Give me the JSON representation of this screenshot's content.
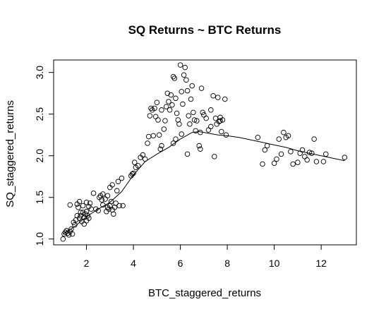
{
  "chart_data": {
    "type": "scatter",
    "title": "SQ Returns ~ BTC Returns",
    "xlabel": "BTC_staggered_returns",
    "ylabel": "SQ_staggered_returns",
    "xlim": [
      0.6,
      13.5
    ],
    "ylim": [
      0.93,
      3.15
    ],
    "xticks": [
      2,
      4,
      6,
      8,
      10,
      12
    ],
    "xtick_labels": [
      "2",
      "4",
      "6",
      "8",
      "10",
      "12"
    ],
    "yticks": [
      1.0,
      1.5,
      2.0,
      2.5,
      3.0
    ],
    "ytick_labels": [
      "1.0",
      "1.5",
      "2.0",
      "2.5",
      "3.0"
    ],
    "grid": false,
    "legend": "none",
    "series": [
      {
        "marker": "open-circle",
        "points": [
          [
            1.0,
            1.0
          ],
          [
            1.05,
            1.06
          ],
          [
            1.1,
            1.08
          ],
          [
            1.15,
            1.1
          ],
          [
            1.2,
            1.07
          ],
          [
            1.3,
            1.09
          ],
          [
            1.25,
            1.05
          ],
          [
            1.35,
            1.12
          ],
          [
            1.4,
            1.06
          ],
          [
            1.3,
            1.41
          ],
          [
            1.45,
            1.2
          ],
          [
            1.5,
            1.17
          ],
          [
            1.55,
            1.23
          ],
          [
            1.6,
            1.28
          ],
          [
            1.6,
            1.42
          ],
          [
            1.65,
            1.38
          ],
          [
            1.7,
            1.45
          ],
          [
            1.75,
            1.32
          ],
          [
            1.8,
            1.21
          ],
          [
            1.85,
            1.4
          ],
          [
            1.9,
            1.26
          ],
          [
            1.95,
            1.3
          ],
          [
            2.0,
            1.33
          ],
          [
            2.0,
            1.44
          ],
          [
            2.05,
            1.28
          ],
          [
            2.1,
            1.25
          ],
          [
            2.1,
            1.39
          ],
          [
            2.15,
            1.43
          ],
          [
            2.2,
            1.36
          ],
          [
            1.7,
            1.25
          ],
          [
            1.9,
            1.18
          ],
          [
            1.75,
            1.28
          ],
          [
            1.85,
            1.32
          ],
          [
            2.0,
            1.22
          ],
          [
            2.3,
            1.55
          ],
          [
            2.4,
            1.36
          ],
          [
            2.5,
            1.34
          ],
          [
            2.55,
            1.5
          ],
          [
            2.6,
            1.52
          ],
          [
            2.65,
            1.47
          ],
          [
            2.7,
            1.54
          ],
          [
            2.7,
            1.41
          ],
          [
            2.8,
            1.48
          ],
          [
            2.85,
            1.33
          ],
          [
            2.9,
            1.38
          ],
          [
            2.9,
            1.52
          ],
          [
            2.95,
            1.36
          ],
          [
            3.0,
            1.62
          ],
          [
            3.0,
            1.4
          ],
          [
            3.05,
            1.45
          ],
          [
            3.1,
            1.35
          ],
          [
            3.1,
            1.65
          ],
          [
            3.15,
            1.3
          ],
          [
            3.2,
            1.38
          ],
          [
            3.25,
            1.43
          ],
          [
            3.3,
            1.58
          ],
          [
            3.35,
            1.69
          ],
          [
            3.4,
            1.4
          ],
          [
            3.5,
            1.73
          ],
          [
            3.55,
            1.4
          ],
          [
            3.9,
            1.76
          ],
          [
            3.95,
            1.78
          ],
          [
            4.0,
            1.79
          ],
          [
            4.05,
            1.92
          ],
          [
            4.1,
            1.86
          ],
          [
            4.2,
            1.88
          ],
          [
            4.3,
            1.98
          ],
          [
            4.4,
            2.01
          ],
          [
            4.5,
            1.96
          ],
          [
            4.6,
            2.15
          ],
          [
            4.65,
            2.23
          ],
          [
            4.7,
            2.48
          ],
          [
            4.75,
            2.57
          ],
          [
            4.8,
            2.55
          ],
          [
            4.85,
            2.24
          ],
          [
            4.9,
            2.57
          ],
          [
            4.95,
            2.47
          ],
          [
            5.0,
            2.64
          ],
          [
            5.05,
            2.43
          ],
          [
            5.1,
            2.25
          ],
          [
            5.15,
            2.08
          ],
          [
            5.2,
            2.55
          ],
          [
            5.3,
            2.32
          ],
          [
            5.35,
            2.42
          ],
          [
            5.4,
            2.59
          ],
          [
            5.45,
            2.75
          ],
          [
            5.5,
            2.65
          ],
          [
            5.55,
            2.55
          ],
          [
            5.6,
            2.73
          ],
          [
            5.65,
            2.61
          ],
          [
            5.7,
            2.95
          ],
          [
            5.75,
            2.93
          ],
          [
            5.8,
            2.69
          ],
          [
            5.85,
            2.51
          ],
          [
            5.9,
            2.43
          ],
          [
            5.95,
            2.38
          ],
          [
            6.0,
            3.09
          ],
          [
            6.05,
            2.77
          ],
          [
            6.1,
            2.62
          ],
          [
            6.15,
            2.97
          ],
          [
            6.2,
            3.06
          ],
          [
            6.25,
            2.91
          ],
          [
            6.3,
            2.78
          ],
          [
            6.35,
            2.48
          ],
          [
            6.4,
            2.38
          ],
          [
            6.45,
            2.68
          ],
          [
            6.5,
            2.84
          ],
          [
            6.55,
            2.52
          ],
          [
            6.6,
            2.43
          ],
          [
            6.65,
            2.3
          ],
          [
            6.7,
            2.42
          ],
          [
            6.8,
            2.12
          ],
          [
            6.85,
            2.08
          ],
          [
            6.9,
            2.81
          ],
          [
            6.95,
            2.52
          ],
          [
            7.0,
            2.49
          ],
          [
            7.1,
            2.45
          ],
          [
            7.2,
            2.31
          ],
          [
            7.3,
            2.35
          ],
          [
            7.4,
            2.72
          ],
          [
            7.5,
            2.45
          ],
          [
            7.55,
            2.38
          ],
          [
            7.6,
            2.7
          ],
          [
            7.65,
            2.41
          ],
          [
            7.7,
            2.42
          ],
          [
            7.75,
            2.29
          ],
          [
            7.8,
            2.43
          ],
          [
            7.9,
            2.68
          ],
          [
            7.95,
            2.25
          ],
          [
            7.45,
            1.99
          ],
          [
            7.7,
            2.46
          ],
          [
            7.3,
            2.55
          ],
          [
            6.85,
            2.28
          ],
          [
            6.3,
            2.02
          ],
          [
            5.7,
            2.15
          ],
          [
            5.2,
            2.12
          ],
          [
            6.05,
            2.26
          ],
          [
            5.8,
            2.2
          ],
          [
            9.3,
            2.22
          ],
          [
            9.5,
            1.9
          ],
          [
            9.6,
            2.07
          ],
          [
            9.7,
            2.12
          ],
          [
            10.0,
            1.91
          ],
          [
            10.1,
            1.96
          ],
          [
            10.2,
            2.2
          ],
          [
            10.3,
            2.02
          ],
          [
            10.4,
            2.28
          ],
          [
            10.5,
            2.22
          ],
          [
            10.6,
            2.24
          ],
          [
            10.7,
            2.05
          ],
          [
            10.8,
            1.9
          ],
          [
            11.0,
            1.92
          ],
          [
            11.1,
            2.03
          ],
          [
            11.2,
            2.07
          ],
          [
            11.3,
            1.99
          ],
          [
            11.4,
            1.95
          ],
          [
            11.5,
            2.04
          ],
          [
            11.6,
            2.03
          ],
          [
            11.7,
            2.2
          ],
          [
            11.8,
            1.93
          ],
          [
            12.1,
            1.93
          ],
          [
            12.2,
            2.02
          ],
          [
            13.0,
            1.98
          ]
        ]
      }
    ],
    "smooth_line": [
      [
        1.0,
        1.06
      ],
      [
        1.5,
        1.15
      ],
      [
        2.0,
        1.27
      ],
      [
        2.5,
        1.36
      ],
      [
        3.0,
        1.44
      ],
      [
        3.5,
        1.57
      ],
      [
        4.0,
        1.77
      ],
      [
        4.5,
        1.93
      ],
      [
        5.0,
        2.02
      ],
      [
        5.5,
        2.1
      ],
      [
        6.0,
        2.2
      ],
      [
        6.5,
        2.28
      ],
      [
        6.8,
        2.29
      ],
      [
        7.2,
        2.27
      ],
      [
        7.6,
        2.25
      ],
      [
        8.0,
        2.24
      ],
      [
        8.5,
        2.22
      ],
      [
        9.0,
        2.19
      ],
      [
        9.5,
        2.16
      ],
      [
        10.0,
        2.13
      ],
      [
        10.5,
        2.1
      ],
      [
        11.0,
        2.06
      ],
      [
        11.5,
        2.03
      ],
      [
        12.0,
        2.0
      ],
      [
        12.5,
        1.97
      ],
      [
        13.0,
        1.94
      ]
    ]
  }
}
